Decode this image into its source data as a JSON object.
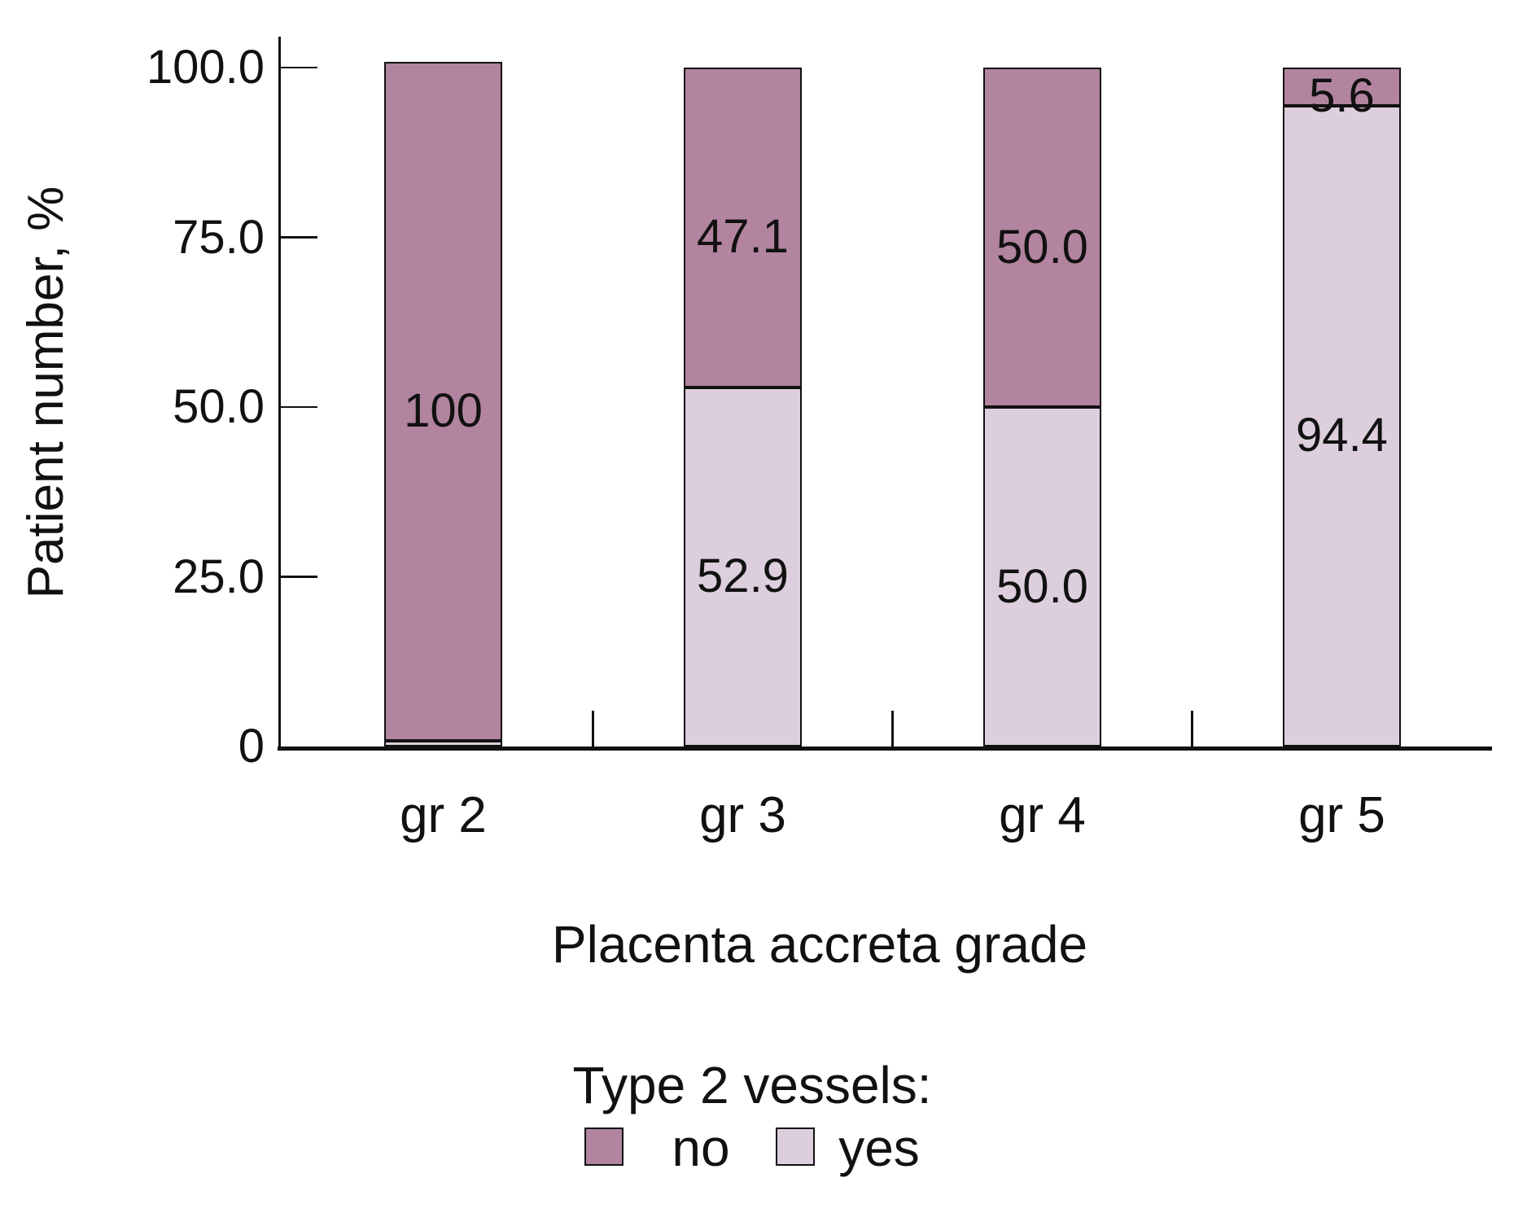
{
  "figure": {
    "background": "#ffffff"
  },
  "chart_data": {
    "type": "bar",
    "stacked": true,
    "orientation": "vertical",
    "title": "",
    "xlabel": "Placenta accreta grade",
    "ylabel": "Patient number, %",
    "categories": [
      "gr 2",
      "gr 3",
      "gr 4",
      "gr 5"
    ],
    "series": [
      {
        "name": "no",
        "color": "#b284a0",
        "values": [
          100,
          47.1,
          50.0,
          5.6
        ],
        "data_labels": [
          "100",
          "47.1",
          "50.0",
          "5.6"
        ]
      },
      {
        "name": "yes",
        "color": "#dccedc",
        "values": [
          0,
          52.9,
          50.0,
          94.4
        ],
        "data_labels": [
          "",
          "52.9",
          "50.0",
          "94.4"
        ]
      }
    ],
    "ylim": [
      0,
      100
    ],
    "yticks": [
      0,
      25,
      50,
      75,
      100
    ],
    "ytick_labels": [
      "0",
      "25.0",
      "50.0",
      "75.0",
      "100.0"
    ],
    "grid": false,
    "legend": {
      "title": "Type 2 vessels:",
      "position": "bottom",
      "entries": [
        {
          "label": "no",
          "color": "#b284a0"
        },
        {
          "label": "yes",
          "color": "#dccedc"
        }
      ]
    }
  }
}
